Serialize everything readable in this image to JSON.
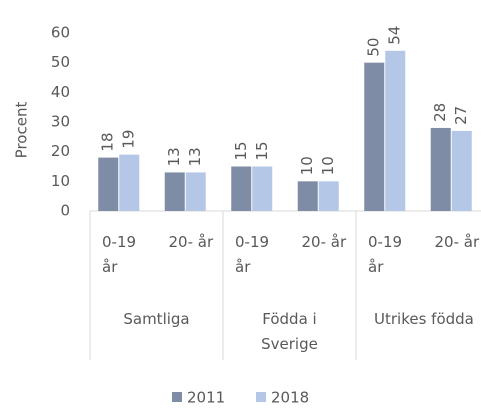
{
  "chart_data": {
    "type": "bar",
    "y_label": "Procent",
    "categories": [
      "0-19 år",
      "20- år",
      "0-19 år",
      "20- år",
      "0-19 år",
      "20- år"
    ],
    "groups": [
      {
        "name": "Samtliga",
        "size": 2
      },
      {
        "name": "Födda i Sverige",
        "size": 2
      },
      {
        "name": "Utrikes födda",
        "size": 2
      }
    ],
    "series": [
      {
        "name": "2011",
        "color": "#7f8ca6",
        "values": [
          18,
          13,
          15,
          10,
          50,
          28
        ]
      },
      {
        "name": "2018",
        "color": "#b4c7e7",
        "values": [
          19,
          13,
          15,
          10,
          54,
          27
        ]
      }
    ],
    "ylim": [
      0,
      60
    ],
    "yticks": [
      0,
      10,
      20,
      30,
      40,
      50,
      60
    ],
    "grid": false,
    "legend": "bottom"
  }
}
